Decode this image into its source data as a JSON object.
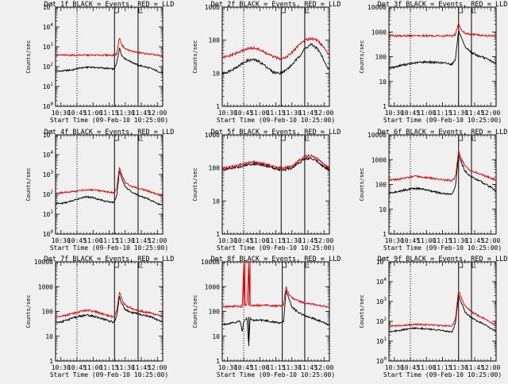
{
  "colors": {
    "background": "#f0f0f0",
    "events": "#000000",
    "lld": "#e00000"
  },
  "chart_data": [
    {
      "type": "line",
      "title": "Det 1f BLACK = Events, RED = LLD",
      "xlabel": "Start Time (09-Feb-10 10:25:00)",
      "ylabel": "Counts/sec",
      "yscale": "log",
      "ylim": [
        1,
        100000
      ],
      "yticks": [
        "10^0",
        "10^1",
        "10^2",
        "10^3",
        "10^4",
        "10^5"
      ],
      "xticks": [
        "10:30",
        "10:45",
        "11:00",
        "11:15",
        "11:30",
        "11:45",
        "12:00"
      ],
      "xlim": [
        10.4167,
        12.0833
      ],
      "x": [
        10.42,
        10.5,
        10.6,
        10.7,
        10.75,
        10.85,
        10.95,
        11.05,
        11.15,
        11.25,
        11.33,
        11.37,
        11.41,
        11.45,
        11.5,
        11.6,
        11.7,
        11.8,
        11.9,
        12.0,
        12.05
      ],
      "series": [
        {
          "name": "BLACK = Events",
          "color": "#000000",
          "values": [
            60,
            60,
            65,
            70,
            80,
            90,
            95,
            90,
            85,
            80,
            75,
            150,
            900,
            350,
            250,
            170,
            120,
            100,
            80,
            60,
            50
          ]
        },
        {
          "name": "RED = LLD",
          "color": "#e00000",
          "values": [
            380,
            380,
            380,
            380,
            380,
            380,
            380,
            380,
            380,
            380,
            380,
            450,
            3000,
            1200,
            800,
            600,
            520,
            460,
            420,
            380,
            340
          ]
        }
      ],
      "vlines": [
        {
          "x": 10.75,
          "style": "dotted"
        },
        {
          "x": 11.3333,
          "style": "solid"
        },
        {
          "x": 11.7,
          "style": "solid"
        }
      ]
    },
    {
      "type": "line",
      "title": "Det 2f BLACK = Events, RED = LLD",
      "xlabel": "Start Time (09-Feb-10 10:25:00)",
      "ylabel": "Counts/sec",
      "yscale": "log",
      "ylim": [
        1,
        1000
      ],
      "yticks": [
        "1",
        "10",
        "100",
        "1000"
      ],
      "xticks": [
        "10:30",
        "10:45",
        "11:00",
        "11:15",
        "11:30",
        "11:45",
        "12:00"
      ],
      "xlim": [
        10.4167,
        12.0833
      ],
      "x": [
        10.42,
        10.5,
        10.6,
        10.7,
        10.8,
        10.9,
        11.0,
        11.1,
        11.2,
        11.3,
        11.4,
        11.5,
        11.6,
        11.7,
        11.8,
        11.9,
        12.0,
        12.05
      ],
      "series": [
        {
          "name": "BLACK = Events",
          "color": "#000000",
          "values": [
            10,
            11,
            14,
            18,
            24,
            26,
            22,
            16,
            11,
            10,
            12,
            18,
            30,
            55,
            75,
            55,
            25,
            14
          ]
        },
        {
          "name": "RED = LLD",
          "color": "#e00000",
          "values": [
            30,
            32,
            38,
            45,
            55,
            58,
            52,
            40,
            32,
            28,
            30,
            42,
            70,
            100,
            115,
            100,
            60,
            40
          ]
        }
      ],
      "vlines": [
        {
          "x": 10.75,
          "style": "dotted"
        },
        {
          "x": 11.3333,
          "style": "solid"
        },
        {
          "x": 11.7,
          "style": "solid"
        }
      ]
    },
    {
      "type": "line",
      "title": "Det 3f BLACK = Events, RED = LLD",
      "xlabel": "Start Time (09-Feb-10 10:25:00)",
      "ylabel": "Counts/sec",
      "yscale": "log",
      "ylim": [
        1,
        10000
      ],
      "yticks": [
        "1",
        "10",
        "100",
        "1000",
        "10000"
      ],
      "xticks": [
        "10:30",
        "10:45",
        "11:00",
        "11:15",
        "11:30",
        "11:45",
        "12:00"
      ],
      "xlim": [
        10.4167,
        12.0833
      ],
      "x": [
        10.42,
        10.5,
        10.6,
        10.7,
        10.8,
        10.9,
        11.0,
        11.1,
        11.2,
        11.3,
        11.4,
        11.45,
        11.5,
        11.55,
        11.6,
        11.7,
        11.8,
        11.9,
        12.0,
        12.05
      ],
      "series": [
        {
          "name": "BLACK = Events",
          "color": "#000000",
          "values": [
            35,
            38,
            45,
            50,
            55,
            60,
            62,
            60,
            58,
            55,
            50,
            80,
            1100,
            500,
            250,
            150,
            110,
            90,
            70,
            55
          ]
        },
        {
          "name": "RED = LLD",
          "color": "#e00000",
          "values": [
            700,
            700,
            700,
            700,
            700,
            700,
            700,
            700,
            700,
            700,
            700,
            800,
            2200,
            1100,
            900,
            800,
            750,
            720,
            700,
            680
          ]
        }
      ],
      "vlines": [
        {
          "x": 10.75,
          "style": "dotted"
        },
        {
          "x": 11.5,
          "style": "solid"
        },
        {
          "x": 11.7,
          "style": "solid"
        }
      ]
    },
    {
      "type": "line",
      "title": "Det 4f BLACK = Events, RED = LLD",
      "xlabel": "Start Time (09-Feb-10 10:25:00)",
      "ylabel": "Counts/sec",
      "yscale": "log",
      "ylim": [
        1,
        100000
      ],
      "yticks": [
        "10^0",
        "10^1",
        "10^2",
        "10^3",
        "10^4",
        "10^5"
      ],
      "xticks": [
        "10:30",
        "10:45",
        "11:00",
        "11:15",
        "11:30",
        "11:45",
        "12:00"
      ],
      "xlim": [
        10.4167,
        12.0833
      ],
      "x": [
        10.42,
        10.5,
        10.6,
        10.7,
        10.8,
        10.9,
        11.0,
        11.1,
        11.2,
        11.3,
        11.33,
        11.37,
        11.41,
        11.45,
        11.5,
        11.6,
        11.7,
        11.8,
        11.9,
        12.0,
        12.05
      ],
      "series": [
        {
          "name": "BLACK = Events",
          "color": "#000000",
          "values": [
            35,
            35,
            40,
            50,
            65,
            75,
            70,
            55,
            45,
            40,
            40,
            90,
            1600,
            600,
            250,
            130,
            90,
            70,
            50,
            35,
            30
          ]
        },
        {
          "name": "RED = LLD",
          "color": "#e00000",
          "values": [
            120,
            120,
            130,
            140,
            160,
            170,
            165,
            150,
            135,
            125,
            125,
            200,
            2400,
            900,
            400,
            250,
            200,
            170,
            130,
            100,
            90
          ]
        }
      ],
      "vlines": [
        {
          "x": 10.75,
          "style": "dotted"
        },
        {
          "x": 11.3333,
          "style": "solid"
        },
        {
          "x": 11.7,
          "style": "solid"
        }
      ]
    },
    {
      "type": "line",
      "title": "Det 5f BLACK = Events, RED = LLD",
      "xlabel": "Start Time (09-Feb-10 10:25:00)",
      "ylabel": "Counts/sec",
      "yscale": "log",
      "ylim": [
        1,
        1000
      ],
      "yticks": [
        "1",
        "10",
        "100",
        "1000"
      ],
      "xticks": [
        "10:30",
        "10:45",
        "11:00",
        "11:15",
        "11:30",
        "11:45",
        "12:00"
      ],
      "xlim": [
        10.4167,
        12.0833
      ],
      "x": [
        10.42,
        10.5,
        10.6,
        10.7,
        10.8,
        10.9,
        11.0,
        11.1,
        11.2,
        11.3,
        11.4,
        11.5,
        11.6,
        11.7,
        11.8,
        11.9,
        12.0,
        12.05
      ],
      "series": [
        {
          "name": "BLACK = Events",
          "color": "#000000",
          "values": [
            90,
            92,
            100,
            110,
            125,
            135,
            130,
            115,
            100,
            92,
            90,
            100,
            140,
            190,
            200,
            160,
            110,
            90
          ]
        },
        {
          "name": "RED = LLD",
          "color": "#e00000",
          "values": [
            100,
            102,
            112,
            125,
            140,
            150,
            145,
            130,
            112,
            102,
            100,
            112,
            160,
            220,
            240,
            190,
            130,
            105
          ]
        }
      ],
      "vlines": [
        {
          "x": 10.75,
          "style": "dotted"
        },
        {
          "x": 11.3333,
          "style": "solid"
        },
        {
          "x": 11.7,
          "style": "solid"
        }
      ]
    },
    {
      "type": "line",
      "title": "Det 6f BLACK = Events, RED = LLD",
      "xlabel": "Start Time (09-Feb-10 10:25:00)",
      "ylabel": "Counts/sec",
      "yscale": "log",
      "ylim": [
        1,
        10000
      ],
      "yticks": [
        "1",
        "10",
        "100",
        "1000",
        "10000"
      ],
      "xticks": [
        "10:30",
        "10:45",
        "11:00",
        "11:15",
        "11:30",
        "11:45",
        "12:00"
      ],
      "xlim": [
        10.4167,
        12.0833
      ],
      "x": [
        10.42,
        10.5,
        10.6,
        10.7,
        10.8,
        10.9,
        11.0,
        11.1,
        11.2,
        11.3,
        11.4,
        11.45,
        11.5,
        11.55,
        11.6,
        11.7,
        11.8,
        11.9,
        12.0,
        12.05
      ],
      "series": [
        {
          "name": "BLACK = Events",
          "color": "#000000",
          "values": [
            45,
            48,
            55,
            62,
            70,
            68,
            60,
            52,
            45,
            42,
            40,
            80,
            1500,
            700,
            350,
            200,
            150,
            110,
            80,
            60
          ]
        },
        {
          "name": "RED = LLD",
          "color": "#e00000",
          "values": [
            150,
            155,
            170,
            190,
            210,
            210,
            195,
            175,
            160,
            150,
            145,
            200,
            2200,
            1000,
            550,
            350,
            280,
            230,
            180,
            160
          ]
        }
      ],
      "vlines": [
        {
          "x": 10.75,
          "style": "dotted"
        },
        {
          "x": 11.5,
          "style": "solid"
        },
        {
          "x": 11.7,
          "style": "solid"
        }
      ]
    },
    {
      "type": "line",
      "title": "Det 7f BLACK = Events, RED = LLD",
      "xlabel": "Start Time (09-Feb-10 10:25:00)",
      "ylabel": "Counts/sec",
      "yscale": "log",
      "ylim": [
        1,
        10000
      ],
      "yticks": [
        "1",
        "10",
        "100",
        "1000",
        "10000"
      ],
      "xticks": [
        "10:30",
        "10:45",
        "11:00",
        "11:15",
        "11:30",
        "11:45",
        "12:00"
      ],
      "xlim": [
        10.4167,
        12.0833
      ],
      "x": [
        10.42,
        10.5,
        10.6,
        10.7,
        10.8,
        10.9,
        11.0,
        11.1,
        11.2,
        11.3,
        11.33,
        11.37,
        11.41,
        11.45,
        11.5,
        11.6,
        11.7,
        11.8,
        11.9,
        12.0,
        12.05
      ],
      "series": [
        {
          "name": "BLACK = Events",
          "color": "#000000",
          "values": [
            35,
            38,
            45,
            55,
            65,
            70,
            65,
            55,
            45,
            38,
            38,
            70,
            400,
            200,
            120,
            90,
            80,
            70,
            60,
            45,
            40
          ]
        },
        {
          "name": "RED = LLD",
          "color": "#e00000",
          "values": [
            60,
            62,
            72,
            85,
            100,
            110,
            102,
            88,
            72,
            62,
            62,
            110,
            650,
            300,
            180,
            130,
            110,
            95,
            85,
            70,
            65
          ]
        }
      ],
      "vlines": [
        {
          "x": 10.75,
          "style": "dotted"
        },
        {
          "x": 11.3333,
          "style": "solid"
        },
        {
          "x": 11.7,
          "style": "solid"
        }
      ]
    },
    {
      "type": "line",
      "title": "Det 8f BLACK = Events, RED = LLD",
      "xlabel": "Start Time (09-Feb-10 10:25:00)",
      "ylabel": "Counts/sec",
      "yscale": "log",
      "ylim": [
        1,
        10000
      ],
      "yticks": [
        "1",
        "10",
        "100",
        "1000",
        "10000"
      ],
      "xticks": [
        "10:30",
        "10:45",
        "11:00",
        "11:15",
        "11:30",
        "11:45",
        "12:00"
      ],
      "xlim": [
        10.4167,
        12.0833
      ],
      "x": [
        10.42,
        10.5,
        10.6,
        10.7,
        10.73,
        10.75,
        10.77,
        10.8,
        10.83,
        10.85,
        10.87,
        10.9,
        11.0,
        11.1,
        11.2,
        11.3,
        11.37,
        11.41,
        11.45,
        11.5,
        11.6,
        11.7,
        11.8,
        11.9,
        12.0,
        12.05
      ],
      "series": [
        {
          "name": "BLACK = Events",
          "color": "#000000",
          "values": [
            30,
            32,
            36,
            40,
            15,
            40,
            42,
            60,
            4,
            60,
            45,
            44,
            45,
            42,
            38,
            35,
            38,
            700,
            350,
            150,
            90,
            70,
            55,
            45,
            35,
            30
          ]
        },
        {
          "name": "RED = LLD",
          "color": "#e00000",
          "values": [
            160,
            160,
            160,
            160,
            170,
            10000,
            170,
            170,
            10000,
            180,
            175,
            175,
            175,
            175,
            170,
            165,
            180,
            1000,
            500,
            350,
            260,
            220,
            200,
            180,
            160,
            150
          ]
        }
      ],
      "vlines": [
        {
          "x": 10.75,
          "style": "dotted"
        },
        {
          "x": 11.35,
          "style": "solid"
        },
        {
          "x": 11.7,
          "style": "solid"
        }
      ]
    },
    {
      "type": "line",
      "title": "Det 9f BLACK = Events, RED = LLD",
      "xlabel": "Start Time (09-Feb-10 10:25:00)",
      "ylabel": "Counts/sec",
      "yscale": "log",
      "ylim": [
        1,
        100000
      ],
      "yticks": [
        "10^0",
        "10^1",
        "10^2",
        "10^3",
        "10^4",
        "10^5"
      ],
      "xticks": [
        "10:30",
        "10:45",
        "11:00",
        "11:15",
        "11:30",
        "11:45",
        "12:00"
      ],
      "xlim": [
        10.4167,
        12.0833
      ],
      "x": [
        10.42,
        10.5,
        10.6,
        10.7,
        10.8,
        10.9,
        11.0,
        11.1,
        11.2,
        11.3,
        11.4,
        11.45,
        11.5,
        11.55,
        11.6,
        11.7,
        11.8,
        11.9,
        12.0,
        12.05
      ],
      "series": [
        {
          "name": "BLACK = Events",
          "color": "#000000",
          "values": [
            30,
            32,
            36,
            40,
            45,
            45,
            42,
            38,
            35,
            32,
            30,
            80,
            2000,
            800,
            300,
            150,
            100,
            70,
            45,
            35
          ]
        },
        {
          "name": "RED = LLD",
          "color": "#e00000",
          "values": [
            60,
            60,
            62,
            65,
            70,
            70,
            68,
            65,
            62,
            60,
            60,
            120,
            3500,
            1400,
            600,
            300,
            200,
            140,
            90,
            70
          ]
        }
      ],
      "vlines": [
        {
          "x": 10.75,
          "style": "dotted"
        },
        {
          "x": 11.5,
          "style": "solid"
        },
        {
          "x": 11.7,
          "style": "solid"
        }
      ]
    }
  ]
}
